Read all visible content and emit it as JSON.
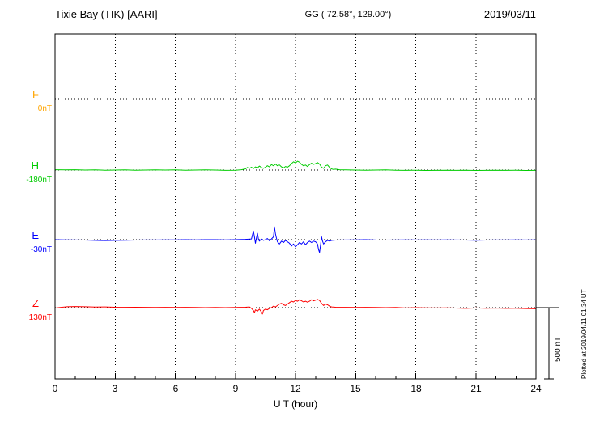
{
  "header": {
    "station": "Tixie Bay (TIK)  [AARI]",
    "coords": "GG ( 72.58°, 129.00°)",
    "date": "2019/03/11"
  },
  "footer_note": "Plotted at 2019/04/11 01:34 UT",
  "x_axis": {
    "label": "U T (hour)",
    "ticks": [
      0,
      3,
      6,
      9,
      12,
      15,
      18,
      21,
      24
    ],
    "range": [
      0,
      24
    ]
  },
  "scale_bar": {
    "label": "500 nT",
    "nT": 500
  },
  "chart_data": {
    "type": "line",
    "title": "Tixie Bay (TIK) [AARI] magnetogram 2019/03/11",
    "xlabel": "U T (hour)",
    "x_range": [
      0,
      24
    ],
    "unit": "nT",
    "scale_bar_nT": 500,
    "grid": "dotted vertical every 3 hours, dotted baseline per component",
    "series": [
      {
        "name": "F",
        "baseline_label": "0nT",
        "baseline_value": 0,
        "color": "#ffa500",
        "points": []
      },
      {
        "name": "H",
        "baseline_label": "-180nT",
        "baseline_value": -180,
        "color": "#00cc00",
        "points": [
          [
            0,
            2
          ],
          [
            0.5,
            1
          ],
          [
            1,
            2
          ],
          [
            1.5,
            0
          ],
          [
            2,
            1
          ],
          [
            2.5,
            -1
          ],
          [
            3,
            0
          ],
          [
            3.5,
            1
          ],
          [
            4,
            -1
          ],
          [
            4.5,
            0
          ],
          [
            5,
            1
          ],
          [
            5.5,
            0
          ],
          [
            6,
            1
          ],
          [
            6.5,
            -1
          ],
          [
            7,
            0
          ],
          [
            7.5,
            1
          ],
          [
            8,
            0
          ],
          [
            8.5,
            -2
          ],
          [
            9,
            -1
          ],
          [
            9.3,
            2
          ],
          [
            9.5,
            8
          ],
          [
            9.6,
            18
          ],
          [
            9.7,
            12
          ],
          [
            9.8,
            20
          ],
          [
            9.9,
            10
          ],
          [
            10,
            22
          ],
          [
            10.1,
            15
          ],
          [
            10.2,
            28
          ],
          [
            10.3,
            18
          ],
          [
            10.4,
            12
          ],
          [
            10.5,
            20
          ],
          [
            10.6,
            30
          ],
          [
            10.7,
            22
          ],
          [
            10.8,
            38
          ],
          [
            10.9,
            30
          ],
          [
            11,
            42
          ],
          [
            11.1,
            30
          ],
          [
            11.2,
            36
          ],
          [
            11.3,
            22
          ],
          [
            11.4,
            15
          ],
          [
            11.5,
            25
          ],
          [
            11.6,
            20
          ],
          [
            11.7,
            30
          ],
          [
            11.8,
            45
          ],
          [
            11.9,
            58
          ],
          [
            12,
            50
          ],
          [
            12.1,
            62
          ],
          [
            12.2,
            55
          ],
          [
            12.3,
            40
          ],
          [
            12.4,
            30
          ],
          [
            12.5,
            35
          ],
          [
            12.6,
            25
          ],
          [
            12.7,
            38
          ],
          [
            12.8,
            48
          ],
          [
            12.9,
            40
          ],
          [
            13,
            45
          ],
          [
            13.1,
            52
          ],
          [
            13.2,
            42
          ],
          [
            13.3,
            20
          ],
          [
            13.4,
            12
          ],
          [
            13.5,
            30
          ],
          [
            13.6,
            35
          ],
          [
            13.7,
            18
          ],
          [
            13.8,
            8
          ],
          [
            13.9,
            4
          ],
          [
            14,
            6
          ],
          [
            14.2,
            2
          ],
          [
            14.5,
            1
          ],
          [
            15,
            0
          ],
          [
            15.5,
            -1
          ],
          [
            16,
            0
          ],
          [
            16.5,
            1
          ],
          [
            17,
            -1
          ],
          [
            17.5,
            -2
          ],
          [
            18,
            -1
          ],
          [
            18.5,
            -3
          ],
          [
            19,
            -2
          ],
          [
            19.5,
            -1
          ],
          [
            20,
            -2
          ],
          [
            20.5,
            -1
          ],
          [
            21,
            -3
          ],
          [
            21.5,
            -2
          ],
          [
            22,
            -1
          ],
          [
            22.5,
            -2
          ],
          [
            23,
            -1
          ],
          [
            23.5,
            -3
          ],
          [
            24,
            -2
          ]
        ]
      },
      {
        "name": "E",
        "baseline_label": "-30nT",
        "baseline_value": -30,
        "color": "#0000ff",
        "points": [
          [
            0,
            0
          ],
          [
            0.5,
            -1
          ],
          [
            1,
            -2
          ],
          [
            1.5,
            -3
          ],
          [
            2,
            -5
          ],
          [
            2.5,
            -6
          ],
          [
            3,
            -5
          ],
          [
            3.5,
            -4
          ],
          [
            4,
            -3
          ],
          [
            4.5,
            -2
          ],
          [
            5,
            -2
          ],
          [
            5.5,
            -1
          ],
          [
            6,
            -1
          ],
          [
            6.5,
            0
          ],
          [
            7,
            -1
          ],
          [
            7.5,
            0
          ],
          [
            8,
            0
          ],
          [
            8.5,
            -1
          ],
          [
            9,
            0
          ],
          [
            9.5,
            2
          ],
          [
            9.8,
            5
          ],
          [
            9.9,
            60
          ],
          [
            9.95,
            20
          ],
          [
            10,
            -25
          ],
          [
            10.05,
            10
          ],
          [
            10.1,
            45
          ],
          [
            10.15,
            5
          ],
          [
            10.2,
            -10
          ],
          [
            10.3,
            5
          ],
          [
            10.4,
            -5
          ],
          [
            10.5,
            0
          ],
          [
            10.6,
            8
          ],
          [
            10.7,
            -8
          ],
          [
            10.8,
            5
          ],
          [
            10.9,
            20
          ],
          [
            10.95,
            90
          ],
          [
            11,
            40
          ],
          [
            11.05,
            10
          ],
          [
            11.1,
            -15
          ],
          [
            11.2,
            -30
          ],
          [
            11.3,
            -10
          ],
          [
            11.4,
            -20
          ],
          [
            11.5,
            -5
          ],
          [
            11.6,
            -15
          ],
          [
            11.7,
            -25
          ],
          [
            11.8,
            -45
          ],
          [
            11.9,
            -30
          ],
          [
            12,
            -50
          ],
          [
            12.1,
            -35
          ],
          [
            12.2,
            -20
          ],
          [
            12.3,
            -30
          ],
          [
            12.4,
            -15
          ],
          [
            12.5,
            -35
          ],
          [
            12.6,
            -20
          ],
          [
            12.7,
            -10
          ],
          [
            12.8,
            -20
          ],
          [
            12.9,
            -10
          ],
          [
            13,
            -15
          ],
          [
            13.1,
            -30
          ],
          [
            13.15,
            -70
          ],
          [
            13.2,
            -90
          ],
          [
            13.25,
            -40
          ],
          [
            13.3,
            20
          ],
          [
            13.35,
            -10
          ],
          [
            13.4,
            -30
          ],
          [
            13.5,
            -15
          ],
          [
            13.6,
            -5
          ],
          [
            13.7,
            -10
          ],
          [
            13.8,
            -5
          ],
          [
            14,
            -3
          ],
          [
            14.5,
            -2
          ],
          [
            15,
            -1
          ],
          [
            15.5,
            0
          ],
          [
            16,
            -2
          ],
          [
            16.5,
            -3
          ],
          [
            17,
            -2
          ],
          [
            17.5,
            -1
          ],
          [
            18,
            -2
          ],
          [
            18.5,
            -1
          ],
          [
            19,
            -2
          ],
          [
            19.5,
            -1
          ],
          [
            20,
            -2
          ],
          [
            20.5,
            -3
          ],
          [
            21,
            -4
          ],
          [
            21.5,
            -3
          ],
          [
            22,
            -2
          ],
          [
            22.5,
            -2
          ],
          [
            23,
            -1
          ],
          [
            23.5,
            -2
          ],
          [
            24,
            -1
          ]
        ]
      },
      {
        "name": "Z",
        "baseline_label": "130nT",
        "baseline_value": 130,
        "color": "#ff0000",
        "points": [
          [
            0,
            -3
          ],
          [
            0.3,
            2
          ],
          [
            0.6,
            6
          ],
          [
            1,
            8
          ],
          [
            1.5,
            6
          ],
          [
            2,
            4
          ],
          [
            2.5,
            5
          ],
          [
            3,
            3
          ],
          [
            3.5,
            2
          ],
          [
            4,
            3
          ],
          [
            4.5,
            2
          ],
          [
            5,
            1
          ],
          [
            5.5,
            2
          ],
          [
            6,
            1
          ],
          [
            6.5,
            2
          ],
          [
            7,
            1
          ],
          [
            7.5,
            0
          ],
          [
            8,
            1
          ],
          [
            8.5,
            0
          ],
          [
            9,
            1
          ],
          [
            9.5,
            3
          ],
          [
            9.7,
            5
          ],
          [
            9.8,
            -5
          ],
          [
            9.9,
            -20
          ],
          [
            9.95,
            -35
          ],
          [
            10,
            -15
          ],
          [
            10.1,
            -25
          ],
          [
            10.2,
            -10
          ],
          [
            10.3,
            -30
          ],
          [
            10.35,
            -45
          ],
          [
            10.4,
            -20
          ],
          [
            10.5,
            -10
          ],
          [
            10.6,
            -15
          ],
          [
            10.7,
            -5
          ],
          [
            10.8,
            0
          ],
          [
            10.9,
            10
          ],
          [
            11,
            5
          ],
          [
            11.1,
            15
          ],
          [
            11.2,
            25
          ],
          [
            11.3,
            30
          ],
          [
            11.4,
            20
          ],
          [
            11.5,
            15
          ],
          [
            11.6,
            25
          ],
          [
            11.7,
            35
          ],
          [
            11.8,
            45
          ],
          [
            11.9,
            40
          ],
          [
            12,
            50
          ],
          [
            12.1,
            45
          ],
          [
            12.2,
            55
          ],
          [
            12.3,
            48
          ],
          [
            12.4,
            40
          ],
          [
            12.5,
            45
          ],
          [
            12.6,
            38
          ],
          [
            12.7,
            45
          ],
          [
            12.8,
            55
          ],
          [
            12.9,
            48
          ],
          [
            13,
            52
          ],
          [
            13.1,
            58
          ],
          [
            13.2,
            50
          ],
          [
            13.3,
            30
          ],
          [
            13.4,
            15
          ],
          [
            13.5,
            25
          ],
          [
            13.6,
            20
          ],
          [
            13.7,
            10
          ],
          [
            13.8,
            5
          ],
          [
            14,
            3
          ],
          [
            14.5,
            2
          ],
          [
            15,
            1
          ],
          [
            15.5,
            2
          ],
          [
            16,
            1
          ],
          [
            16.5,
            0
          ],
          [
            17,
            1
          ],
          [
            17.5,
            -2
          ],
          [
            18,
            0
          ],
          [
            18.5,
            -1
          ],
          [
            19,
            -2
          ],
          [
            19.5,
            -1
          ],
          [
            20,
            -3
          ],
          [
            20.5,
            -5
          ],
          [
            21,
            -2
          ],
          [
            21.5,
            -4
          ],
          [
            22,
            -3
          ],
          [
            22.5,
            -5
          ],
          [
            23,
            -4
          ],
          [
            23.5,
            -6
          ],
          [
            24,
            -8
          ]
        ]
      }
    ]
  }
}
